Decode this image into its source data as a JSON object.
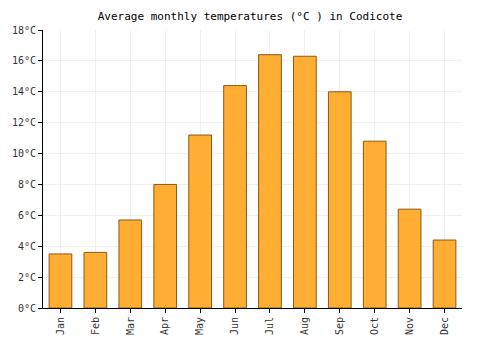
{
  "chart_data": {
    "type": "bar",
    "title": "Average monthly temperatures (°C ) in Codicote",
    "categories": [
      "Jan",
      "Feb",
      "Mar",
      "Apr",
      "May",
      "Jun",
      "Jul",
      "Aug",
      "Sep",
      "Oct",
      "Nov",
      "Dec"
    ],
    "values": [
      3.5,
      3.6,
      5.7,
      8.0,
      11.2,
      14.4,
      16.4,
      16.3,
      14.0,
      10.8,
      6.4,
      4.4
    ],
    "color": "#ffad33",
    "ylim": [
      0,
      18
    ],
    "yticks": [
      {
        "value": 0,
        "label": "0°C"
      },
      {
        "value": 2,
        "label": "2°C"
      },
      {
        "value": 4,
        "label": "4°C"
      },
      {
        "value": 6,
        "label": "6°C"
      },
      {
        "value": 8,
        "label": "8°C"
      },
      {
        "value": 10,
        "label": "10°C"
      },
      {
        "value": 12,
        "label": "12°C"
      },
      {
        "value": 14,
        "label": "14°C"
      },
      {
        "value": 16,
        "label": "16°C"
      },
      {
        "value": 18,
        "label": "18°C"
      }
    ],
    "grid": true
  }
}
